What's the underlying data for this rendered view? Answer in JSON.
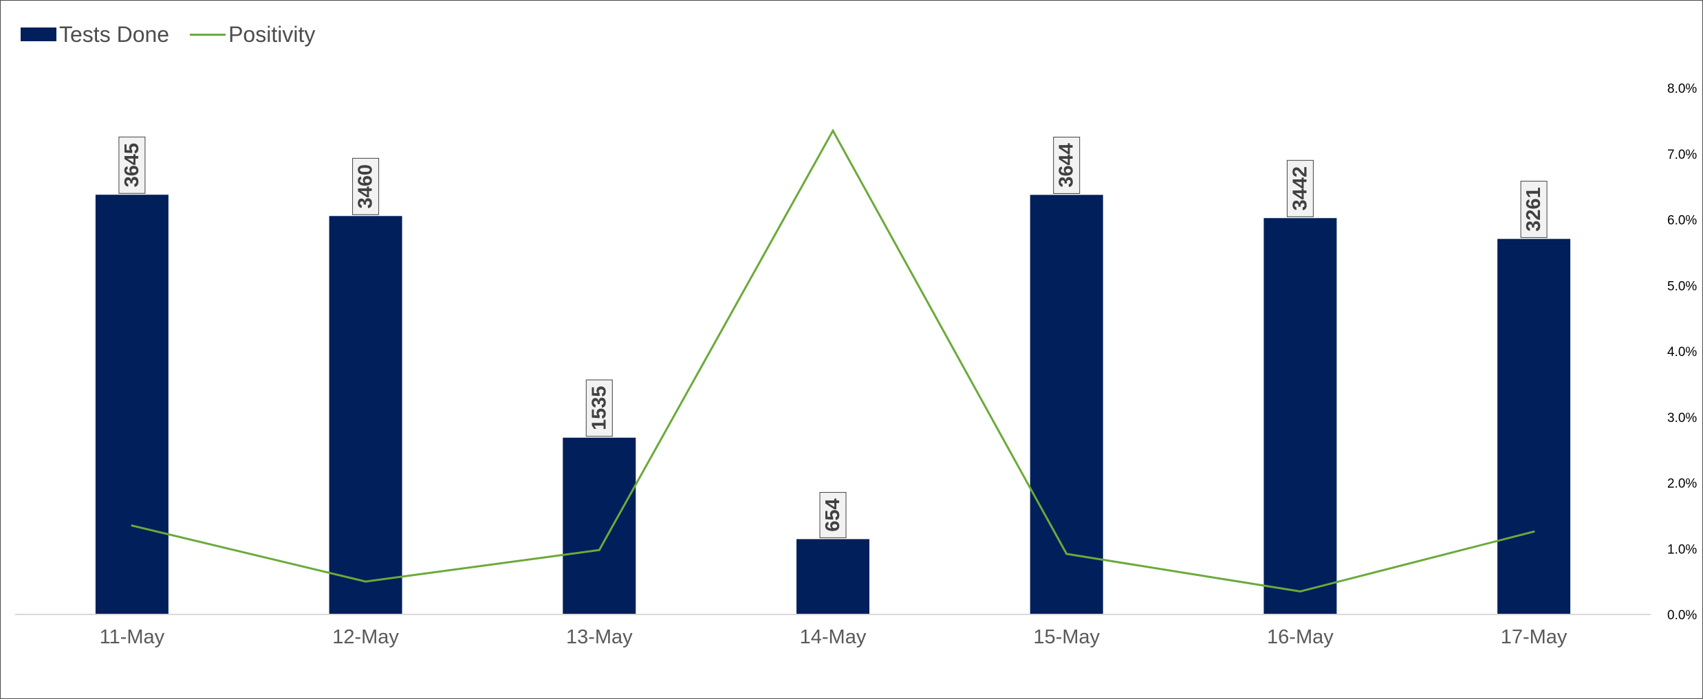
{
  "chart_data": {
    "type": "bar",
    "categories": [
      "11-May",
      "12-May",
      "13-May",
      "14-May",
      "15-May",
      "16-May",
      "17-May"
    ],
    "series": [
      {
        "name": "Tests Done",
        "type": "bar",
        "axis": "left",
        "color": "#001f5b",
        "values": [
          3645,
          3460,
          1535,
          654,
          3644,
          3442,
          3261
        ],
        "data_labels": [
          "3645",
          "3460",
          "1535",
          "654",
          "3644",
          "3442",
          "3261"
        ]
      },
      {
        "name": "Positivity",
        "type": "line",
        "axis": "right",
        "color": "#6aaa3a",
        "values": [
          1.35,
          0.5,
          0.98,
          7.35,
          0.92,
          0.35,
          1.26
        ],
        "unit": "%"
      }
    ],
    "y_left_range": [
      0,
      4572
    ],
    "y_right_range": [
      0,
      8.0
    ],
    "y_right_ticks": [
      "0.0%",
      "1.0%",
      "2.0%",
      "3.0%",
      "4.0%",
      "5.0%",
      "6.0%",
      "7.0%",
      "8.0%"
    ],
    "title": "",
    "xlabel": "",
    "ylabel": "",
    "grid": false,
    "legend_position": "top-left"
  }
}
